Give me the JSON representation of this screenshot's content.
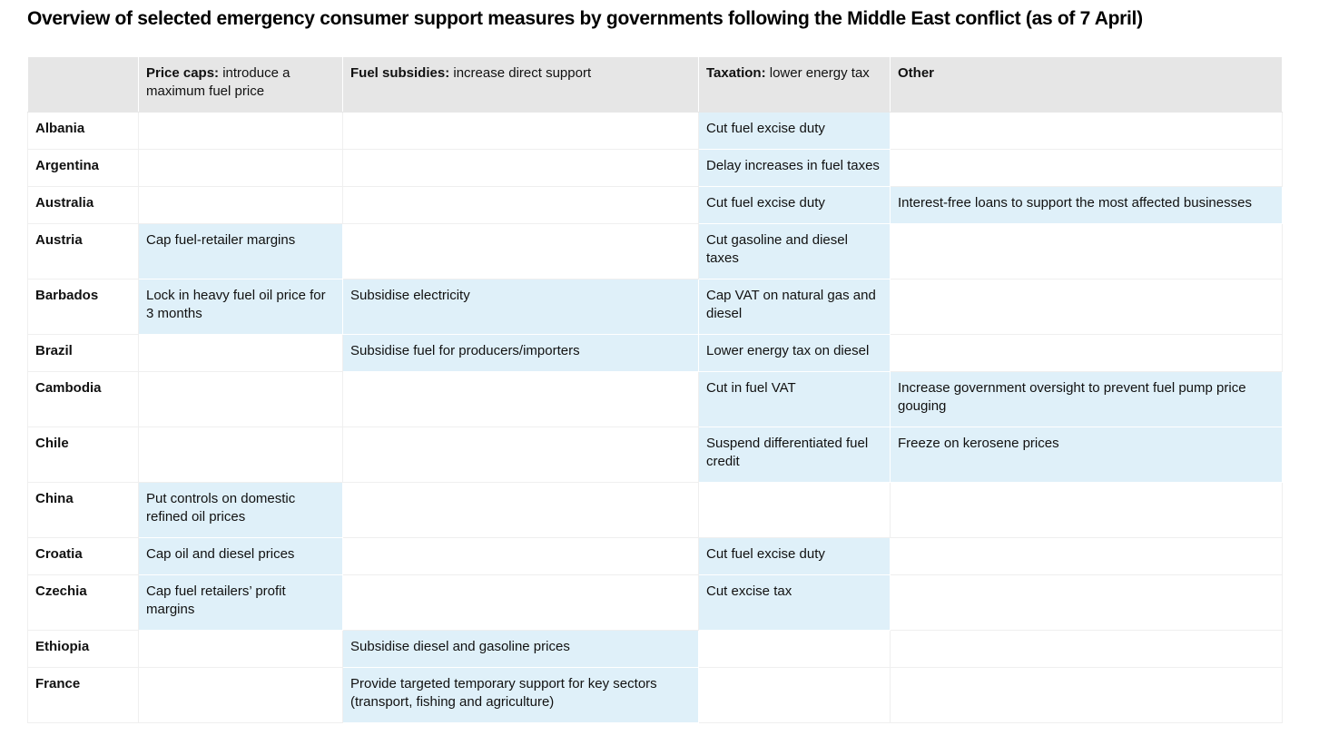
{
  "title": "Overview of selected emergency consumer support measures by governments following the Middle East conflict (as of 7 April)",
  "columns": [
    {
      "bold": "",
      "rest": ""
    },
    {
      "bold": "Price caps:",
      "rest": " introduce a maximum fuel price"
    },
    {
      "bold": "Fuel subsidies:",
      "rest": " increase direct support"
    },
    {
      "bold": "Taxation:",
      "rest": " lower energy tax"
    },
    {
      "bold": "Other",
      "rest": ""
    }
  ],
  "fill_color": "#dff0f9",
  "header_color": "#e6e6e6",
  "rows": [
    [
      "Albania",
      "",
      "",
      "Cut fuel excise duty",
      ""
    ],
    [
      "Argentina",
      "",
      "",
      "Delay increases in fuel taxes",
      ""
    ],
    [
      "Australia",
      "",
      "",
      "Cut fuel excise duty",
      "Interest-free loans to support the most affected businesses"
    ],
    [
      "Austria",
      "Cap fuel-retailer margins",
      "",
      "Cut gasoline and diesel taxes",
      ""
    ],
    [
      "Barbados",
      "Lock in heavy fuel oil price for 3 months",
      "Subsidise electricity",
      "Cap VAT on natural gas and diesel",
      ""
    ],
    [
      "Brazil",
      "",
      "Subsidise fuel for producers/importers",
      "Lower energy tax on diesel",
      ""
    ],
    [
      "Cambodia",
      "",
      "",
      "Cut in fuel VAT",
      "Increase government oversight to prevent fuel pump price gouging"
    ],
    [
      "Chile",
      "",
      "",
      "Suspend differentiated fuel credit",
      "Freeze on kerosene prices"
    ],
    [
      "China",
      "Put controls on domestic refined oil prices",
      "",
      "",
      ""
    ],
    [
      "Croatia",
      "Cap oil and diesel prices",
      "",
      "Cut fuel excise duty",
      ""
    ],
    [
      "Czechia",
      "Cap fuel retailers’ profit margins",
      "",
      "Cut excise tax",
      ""
    ],
    [
      "Ethiopia",
      "",
      "Subsidise diesel and gasoline prices",
      "",
      ""
    ],
    [
      "France",
      "",
      "Provide targeted temporary support for key sectors (transport, fishing and agriculture)",
      "",
      ""
    ]
  ]
}
